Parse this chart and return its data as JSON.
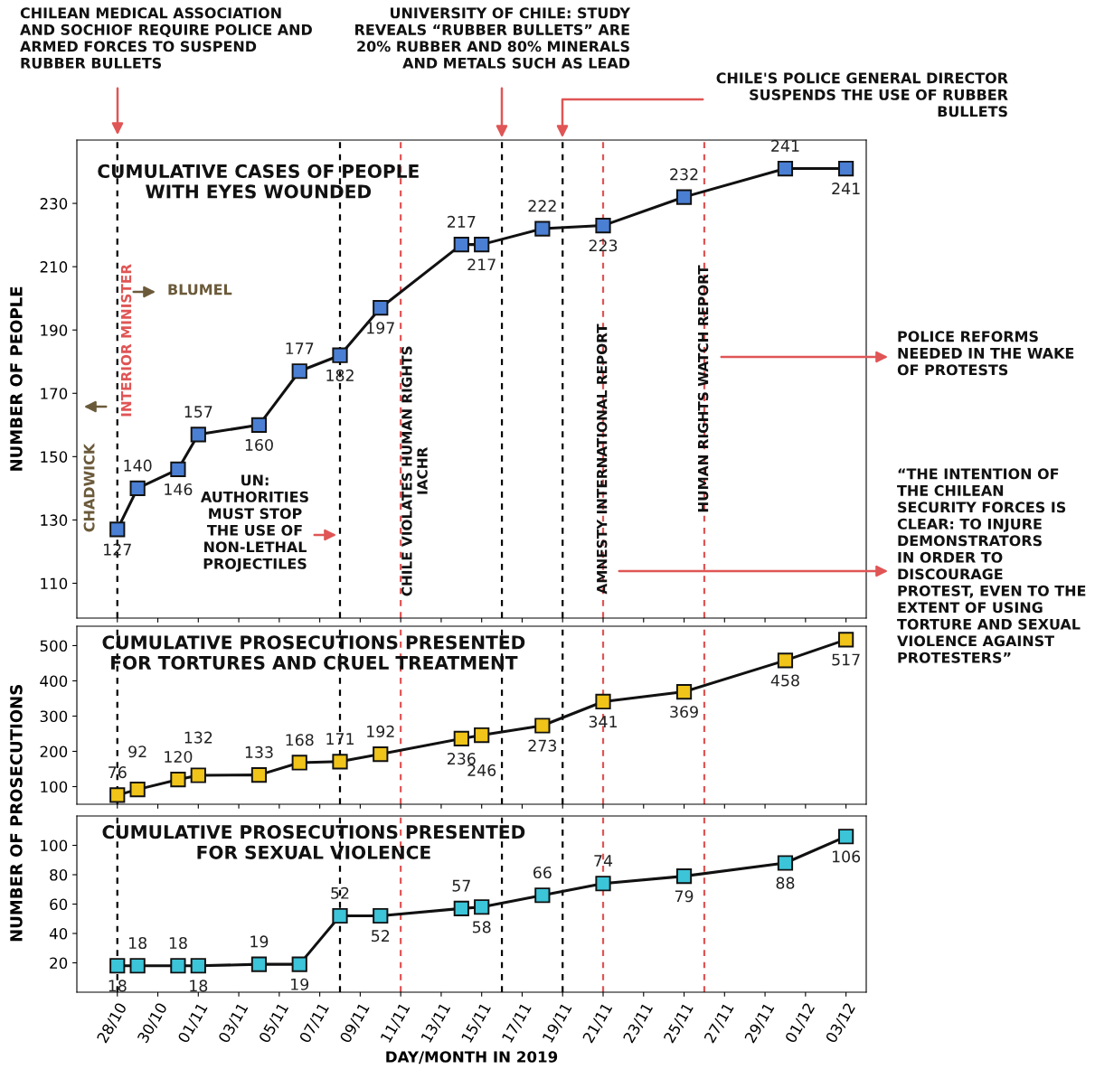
{
  "chart_data": [
    {
      "type": "line",
      "title": "CUMULATIVE CASES OF PEOPLE\nWITH EYES WOUNDED",
      "ylabel": "NUMBER OF PEOPLE",
      "x": [
        "2019-10-28",
        "2019-10-29",
        "2019-10-31",
        "2019-11-01",
        "2019-11-04",
        "2019-11-06",
        "2019-11-08",
        "2019-11-10",
        "2019-11-14",
        "2019-11-15",
        "2019-11-18",
        "2019-11-21",
        "2019-11-25",
        "2019-11-30",
        "2019-12-03"
      ],
      "series": [
        {
          "color": "#4a7fd4",
          "values": [
            127,
            140,
            146,
            157,
            160,
            177,
            182,
            197,
            217,
            217,
            222,
            223,
            232,
            241,
            241
          ]
        }
      ],
      "data_labels": true,
      "marker": "square",
      "line_style": "solid",
      "grid": false,
      "tick_labels": "y",
      "xlim": [
        "2019-10-26",
        "2019-12-04"
      ],
      "xticks": [
        {
          "value": "2019-10-28",
          "label": null
        },
        {
          "value": "2019-10-30",
          "label": null
        },
        {
          "value": "2019-11-01",
          "label": null
        },
        {
          "value": "2019-11-03",
          "label": null
        },
        {
          "value": "2019-11-05",
          "label": null
        },
        {
          "value": "2019-11-07",
          "label": null
        },
        {
          "value": "2019-11-09",
          "label": null
        },
        {
          "value": "2019-11-11",
          "label": null
        },
        {
          "value": "2019-11-13",
          "label": null
        },
        {
          "value": "2019-11-15",
          "label": null
        },
        {
          "value": "2019-11-17",
          "label": null
        },
        {
          "value": "2019-11-19",
          "label": null
        },
        {
          "value": "2019-11-21",
          "label": null
        },
        {
          "value": "2019-11-23",
          "label": null
        },
        {
          "value": "2019-11-25",
          "label": null
        },
        {
          "value": "2019-11-27",
          "label": null
        },
        {
          "value": "2019-11-29",
          "label": null
        },
        {
          "value": "2019-12-01",
          "label": null
        },
        {
          "value": "2019-12-03",
          "label": null
        }
      ],
      "ylim": [
        99,
        250
      ],
      "yticks": [
        110,
        130,
        150,
        170,
        190,
        210,
        230
      ],
      "ref_lines": [
        {
          "axis": "x",
          "value": "2019-10-28",
          "label": "INTERIOR MINISTER",
          "color": "#000000",
          "line_style": "dashed"
        },
        {
          "axis": "x",
          "value": "2019-11-08",
          "label": null,
          "color": "#000000",
          "line_style": "dashed"
        },
        {
          "axis": "x",
          "value": "2019-11-11",
          "label": "CHILE VIOLATES HUMAN RIGHTS\nIACHR",
          "color": "#e05555",
          "line_style": "dashed"
        },
        {
          "axis": "x",
          "value": "2019-11-16",
          "label": null,
          "color": "#000000",
          "line_style": "dashed"
        },
        {
          "axis": "x",
          "value": "2019-11-19",
          "label": null,
          "color": "#000000",
          "line_style": "dashed"
        },
        {
          "axis": "x",
          "value": "2019-11-21",
          "label": "AMNESTY INTERNATIONAL REPORT",
          "color": "#e05555",
          "line_style": "dashed"
        },
        {
          "axis": "x",
          "value": "2019-11-26",
          "label": "HUMAN RIGHTS WATCH REPORT",
          "color": "#e05555",
          "line_style": "dashed"
        }
      ],
      "annotations": [
        "CHILEAN MEDICAL ASSOCIATION\nAND SOCHIOF REQUIRE POLICE AND\nARMED FORCES TO SUSPEND\nRUBBER BULLETS",
        "UNIVERSITY OF CHILE: STUDY\nREVEALS “RUBBER BULLETS” ARE\n20% RUBBER AND 80% MINERALS\nAND METALS SUCH AS LEAD",
        "CHILE'S POLICE GENERAL DIRECTOR\nSUSPENDS THE USE OF RUBBER\nBULLETS",
        "UN:\nAUTHORITIES\nMUST STOP\nTHE USE OF\nNON-LETHAL\nPROJECTILES",
        "POLICE REFORMS\nNEEDED IN THE WAKE\nOF PROTESTS",
        "“THE INTENTION OF\nTHE CHILEAN\nSECURITY FORCES IS\nCLEAR: TO INJURE\nDEMONSTRATORS\nIN ORDER TO\nDISCOURAGE\nPROTEST, EVEN TO THE\nEXTENT OF USING\nTORTURE AND SEXUAL\nVIOLENCE AGAINST\nPROTESTERS”",
        "CHADWICK",
        "BLUMEL"
      ]
    },
    {
      "type": "line",
      "title": "CUMULATIVE PROSECUTIONS PRESENTED\nFOR TORTURES AND CRUEL TREATMENT",
      "ylabel": "NUMBER OF PROSECUTIONS",
      "x": [
        "2019-10-28",
        "2019-10-29",
        "2019-10-31",
        "2019-11-01",
        "2019-11-04",
        "2019-11-06",
        "2019-11-08",
        "2019-11-10",
        "2019-11-14",
        "2019-11-15",
        "2019-11-18",
        "2019-11-21",
        "2019-11-25",
        "2019-11-30",
        "2019-12-03"
      ],
      "series": [
        {
          "color": "#f0c419",
          "values": [
            76,
            92,
            120,
            132,
            133,
            168,
            171,
            192,
            236,
            246,
            273,
            341,
            369,
            458,
            517
          ]
        }
      ],
      "data_labels": true,
      "marker": "square",
      "line_style": "solid",
      "grid": false,
      "tick_labels": "y",
      "xlim": [
        "2019-10-26",
        "2019-12-04"
      ],
      "xticks": [
        {
          "value": "2019-10-28",
          "label": null
        },
        {
          "value": "2019-10-30",
          "label": null
        },
        {
          "value": "2019-11-01",
          "label": null
        },
        {
          "value": "2019-11-03",
          "label": null
        },
        {
          "value": "2019-11-05",
          "label": null
        },
        {
          "value": "2019-11-07",
          "label": null
        },
        {
          "value": "2019-11-09",
          "label": null
        },
        {
          "value": "2019-11-11",
          "label": null
        },
        {
          "value": "2019-11-13",
          "label": null
        },
        {
          "value": "2019-11-15",
          "label": null
        },
        {
          "value": "2019-11-17",
          "label": null
        },
        {
          "value": "2019-11-19",
          "label": null
        },
        {
          "value": "2019-11-21",
          "label": null
        },
        {
          "value": "2019-11-23",
          "label": null
        },
        {
          "value": "2019-11-25",
          "label": null
        },
        {
          "value": "2019-11-27",
          "label": null
        },
        {
          "value": "2019-11-29",
          "label": null
        },
        {
          "value": "2019-12-01",
          "label": null
        },
        {
          "value": "2019-12-03",
          "label": null
        }
      ],
      "ylim": [
        50,
        555
      ],
      "yticks": [
        100,
        200,
        300,
        400,
        500
      ],
      "ref_lines": [
        {
          "axis": "x",
          "value": "2019-10-28",
          "label": null,
          "color": "#000000",
          "line_style": "dashed"
        },
        {
          "axis": "x",
          "value": "2019-11-08",
          "label": null,
          "color": "#000000",
          "line_style": "dashed"
        },
        {
          "axis": "x",
          "value": "2019-11-11",
          "label": null,
          "color": "#e05555",
          "line_style": "dashed"
        },
        {
          "axis": "x",
          "value": "2019-11-16",
          "label": null,
          "color": "#000000",
          "line_style": "dashed"
        },
        {
          "axis": "x",
          "value": "2019-11-19",
          "label": null,
          "color": "#000000",
          "line_style": "dashed"
        },
        {
          "axis": "x",
          "value": "2019-11-21",
          "label": null,
          "color": "#e05555",
          "line_style": "dashed"
        },
        {
          "axis": "x",
          "value": "2019-11-26",
          "label": null,
          "color": "#e05555",
          "line_style": "dashed"
        }
      ]
    },
    {
      "type": "line",
      "title": "CUMULATIVE PROSECUTIONS PRESENTED\nFOR SEXUAL VIOLENCE",
      "xlabel": "DAY/MONTH IN 2019",
      "x": [
        "2019-10-28",
        "2019-10-29",
        "2019-10-31",
        "2019-11-01",
        "2019-11-04",
        "2019-11-06",
        "2019-11-08",
        "2019-11-10",
        "2019-11-14",
        "2019-11-15",
        "2019-11-18",
        "2019-11-21",
        "2019-11-25",
        "2019-11-30",
        "2019-12-03"
      ],
      "series": [
        {
          "color": "#3cc4d8",
          "values": [
            18,
            18,
            18,
            18,
            19,
            19,
            52,
            52,
            57,
            58,
            66,
            74,
            79,
            88,
            106
          ]
        }
      ],
      "data_labels": true,
      "marker": "square",
      "line_style": "solid",
      "grid": false,
      "xlim": [
        "2019-10-26",
        "2019-12-04"
      ],
      "xticks": [
        {
          "value": "2019-10-28",
          "label": "28/10"
        },
        {
          "value": "2019-10-30",
          "label": "30/10"
        },
        {
          "value": "2019-11-01",
          "label": "01/11"
        },
        {
          "value": "2019-11-03",
          "label": "03/11"
        },
        {
          "value": "2019-11-05",
          "label": "05/11"
        },
        {
          "value": "2019-11-07",
          "label": "07/11"
        },
        {
          "value": "2019-11-09",
          "label": "09/11"
        },
        {
          "value": "2019-11-11",
          "label": "11/11"
        },
        {
          "value": "2019-11-13",
          "label": "13/11"
        },
        {
          "value": "2019-11-15",
          "label": "15/11"
        },
        {
          "value": "2019-11-17",
          "label": "17/11"
        },
        {
          "value": "2019-11-19",
          "label": "19/11"
        },
        {
          "value": "2019-11-21",
          "label": "21/11"
        },
        {
          "value": "2019-11-23",
          "label": "23/11"
        },
        {
          "value": "2019-11-25",
          "label": "25/11"
        },
        {
          "value": "2019-11-27",
          "label": "27/11"
        },
        {
          "value": "2019-11-29",
          "label": "29/11"
        },
        {
          "value": "2019-12-01",
          "label": "01/12"
        },
        {
          "value": "2019-12-03",
          "label": "03/12"
        }
      ],
      "ylim": [
        0,
        120
      ],
      "yticks": [
        20,
        40,
        60,
        80,
        100
      ],
      "ref_lines": [
        {
          "axis": "x",
          "value": "2019-10-28",
          "label": null,
          "color": "#000000",
          "line_style": "dashed"
        },
        {
          "axis": "x",
          "value": "2019-11-08",
          "label": null,
          "color": "#000000",
          "line_style": "dashed"
        },
        {
          "axis": "x",
          "value": "2019-11-11",
          "label": null,
          "color": "#e05555",
          "line_style": "dashed"
        },
        {
          "axis": "x",
          "value": "2019-11-16",
          "label": null,
          "color": "#000000",
          "line_style": "dashed"
        },
        {
          "axis": "x",
          "value": "2019-11-19",
          "label": null,
          "color": "#000000",
          "line_style": "dashed"
        },
        {
          "axis": "x",
          "value": "2019-11-21",
          "label": null,
          "color": "#e05555",
          "line_style": "dashed"
        },
        {
          "axis": "x",
          "value": "2019-11-26",
          "label": null,
          "color": "#e05555",
          "line_style": "dashed"
        }
      ]
    }
  ]
}
